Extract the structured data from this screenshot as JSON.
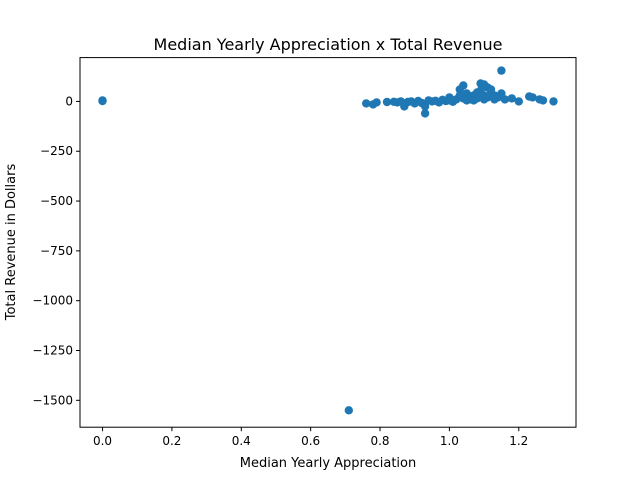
{
  "chart_data": {
    "type": "scatter",
    "title": "Median Yearly Appreciation x Total Revenue",
    "xlabel": "Median Yearly Appreciation",
    "ylabel": "Total Revenue in Dollars",
    "xlim": [
      -0.065,
      1.365
    ],
    "ylim": [
      -1635,
      220
    ],
    "xticks": [
      0.0,
      0.2,
      0.4,
      0.6,
      0.8,
      1.0,
      1.2
    ],
    "xtick_labels": [
      "0.0",
      "0.2",
      "0.4",
      "0.6",
      "0.8",
      "1.0",
      "1.2"
    ],
    "yticks": [
      0,
      -250,
      -500,
      -750,
      -1000,
      -1250,
      -1500
    ],
    "ytick_labels": [
      "0",
      "−250",
      "−500",
      "−750",
      "−1000",
      "−1250",
      "−1500"
    ],
    "grid": false,
    "marker_color": "#1f77b4",
    "series": [
      {
        "points": [
          [
            0.0,
            2
          ],
          [
            0.0,
            5
          ],
          [
            0.71,
            -1550
          ],
          [
            0.76,
            -10
          ],
          [
            0.78,
            -15
          ],
          [
            0.79,
            -5
          ],
          [
            0.82,
            -3
          ],
          [
            0.84,
            -2
          ],
          [
            0.85,
            -5
          ],
          [
            0.86,
            0
          ],
          [
            0.87,
            -25
          ],
          [
            0.88,
            -3
          ],
          [
            0.89,
            0
          ],
          [
            0.9,
            -10
          ],
          [
            0.91,
            2
          ],
          [
            0.92,
            -8
          ],
          [
            0.93,
            -60
          ],
          [
            0.93,
            -25
          ],
          [
            0.94,
            5
          ],
          [
            0.95,
            0
          ],
          [
            0.96,
            3
          ],
          [
            0.97,
            -5
          ],
          [
            0.98,
            8
          ],
          [
            0.99,
            2
          ],
          [
            1.0,
            20
          ],
          [
            1.0,
            5
          ],
          [
            1.01,
            -2
          ],
          [
            1.02,
            10
          ],
          [
            1.03,
            60
          ],
          [
            1.03,
            30
          ],
          [
            1.04,
            80
          ],
          [
            1.04,
            15
          ],
          [
            1.05,
            5
          ],
          [
            1.05,
            40
          ],
          [
            1.06,
            25
          ],
          [
            1.06,
            10
          ],
          [
            1.07,
            30
          ],
          [
            1.07,
            5
          ],
          [
            1.08,
            45
          ],
          [
            1.08,
            15
          ],
          [
            1.09,
            90
          ],
          [
            1.09,
            55
          ],
          [
            1.1,
            85
          ],
          [
            1.1,
            30
          ],
          [
            1.1,
            10
          ],
          [
            1.11,
            70
          ],
          [
            1.11,
            20
          ],
          [
            1.12,
            60
          ],
          [
            1.12,
            40
          ],
          [
            1.13,
            30
          ],
          [
            1.13,
            10
          ],
          [
            1.14,
            20
          ],
          [
            1.15,
            155
          ],
          [
            1.15,
            40
          ],
          [
            1.16,
            10
          ],
          [
            1.18,
            15
          ],
          [
            1.2,
            0
          ],
          [
            1.23,
            25
          ],
          [
            1.24,
            20
          ],
          [
            1.26,
            10
          ],
          [
            1.27,
            5
          ],
          [
            1.3,
            0
          ]
        ]
      }
    ]
  }
}
